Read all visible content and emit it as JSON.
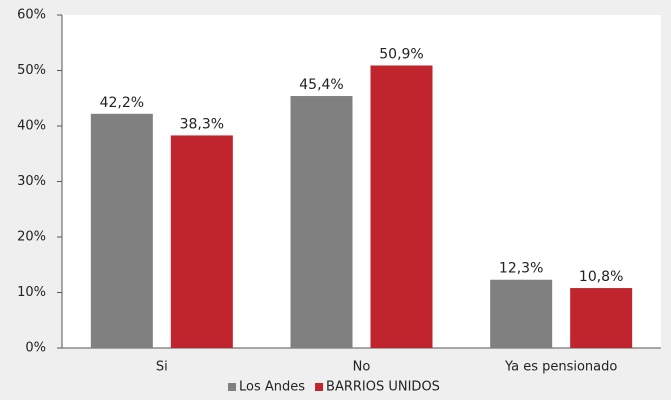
{
  "chart_data": {
    "type": "bar",
    "categories": [
      "Si",
      "No",
      "Ya es pensionado"
    ],
    "series": [
      {
        "name": "Los Andes",
        "color": "#808080",
        "values": [
          42.2,
          45.4,
          12.3
        ],
        "value_labels": [
          "42,2%",
          "45,4%",
          "12,3%"
        ]
      },
      {
        "name": "BARRIOS UNIDOS",
        "color": "#c0242c",
        "values": [
          38.3,
          50.9,
          10.8
        ],
        "value_labels": [
          "38,3%",
          "50,9%",
          "10,8%"
        ]
      }
    ],
    "ylim": [
      0,
      60
    ],
    "yticks": [
      {
        "value": 0,
        "label": "0%"
      },
      {
        "value": 10,
        "label": "10%"
      },
      {
        "value": 20,
        "label": "20%"
      },
      {
        "value": 30,
        "label": "30%"
      },
      {
        "value": 40,
        "label": "40%"
      },
      {
        "value": 50,
        "label": "50%"
      },
      {
        "value": 60,
        "label": "60%"
      }
    ],
    "legend": "bottom"
  }
}
